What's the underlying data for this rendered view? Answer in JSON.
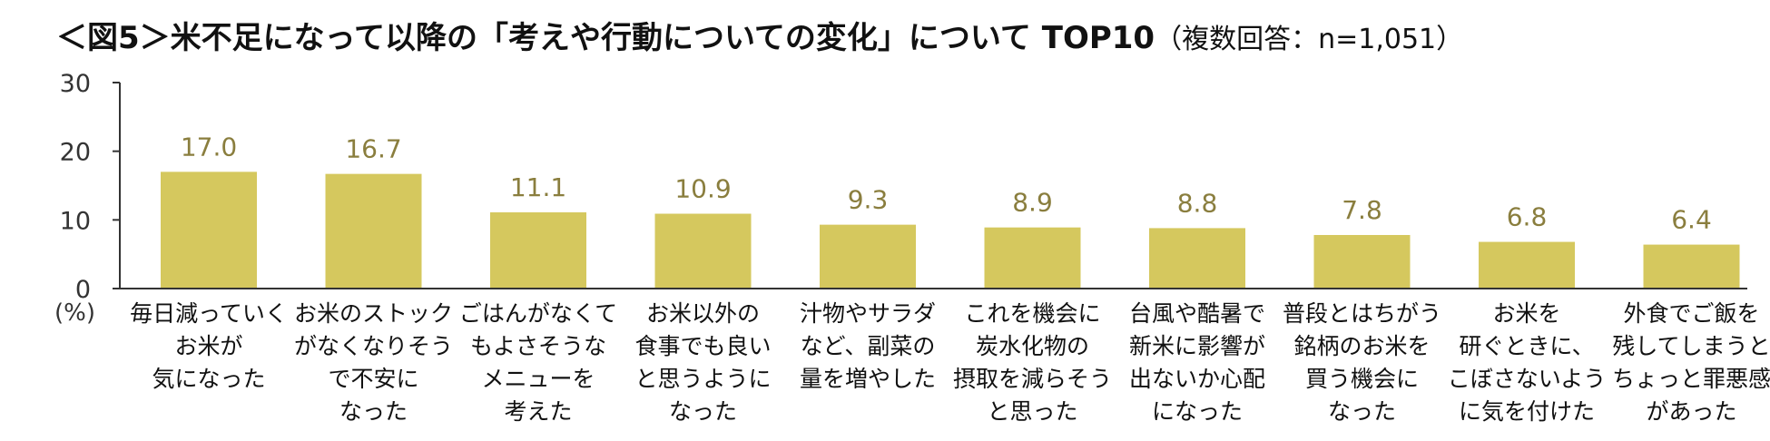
{
  "title": "＜図5＞米不足になって以降の「考えや行動についての変化」について TOP10",
  "subtitle": "（複数回答：n=1,051）",
  "unit_label": "(%)",
  "colors": {
    "bar": "#d5c85e",
    "value_label": "#8a7e3e",
    "axis": "#333333"
  },
  "chart_data": {
    "type": "bar",
    "ylim": [
      0,
      30
    ],
    "yticks": [
      0,
      10,
      20,
      30
    ],
    "grid": false,
    "categories": [
      "毎日減っていく\nお米が\n気になった",
      "お米のストック\nがなくなりそう\nで不安に\nなった",
      "ごはんがなくて\nもよさそうな\nメニューを\n考えた",
      "お米以外の\n食事でも良い\nと思うように\nなった",
      "汁物やサラダ\nなど、副菜の\n量を増やした",
      "これを機会に\n炭水化物の\n摂取を減らそう\nと思った",
      "台風や酷暑で\n新米に影響が\n出ないか心配\nになった",
      "普段とはちがう\n銘柄のお米を\n買う機会に\nなった",
      "お米を\n研ぐときに、\nこぼさないよう\nに気を付けた",
      "外食でご飯を\n残してしまうと\nちょっと罪悪感\nがあった"
    ],
    "values": [
      17.0,
      16.7,
      11.1,
      10.9,
      9.3,
      8.9,
      8.8,
      7.8,
      6.8,
      6.4
    ],
    "value_labels": [
      "17.0",
      "16.7",
      "11.1",
      "10.9",
      "9.3",
      "8.9",
      "8.8",
      "7.8",
      "6.8",
      "6.4"
    ]
  }
}
